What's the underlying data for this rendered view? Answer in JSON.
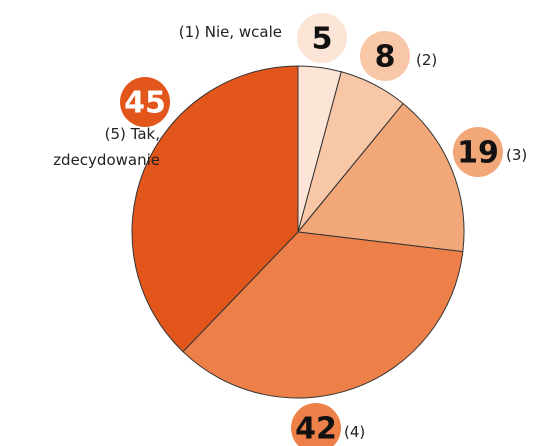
{
  "chart_data": {
    "type": "pie",
    "categories": [
      "(1) Nie, wcale",
      "(2)",
      "(3)",
      "(4)",
      "(5) Tak, zdecydowanie"
    ],
    "values": [
      5,
      8,
      19,
      42,
      45
    ],
    "colors": [
      "#fce4d6",
      "#f8c7a8",
      "#f2a779",
      "#ed8048",
      "#e2561c"
    ]
  }
}
